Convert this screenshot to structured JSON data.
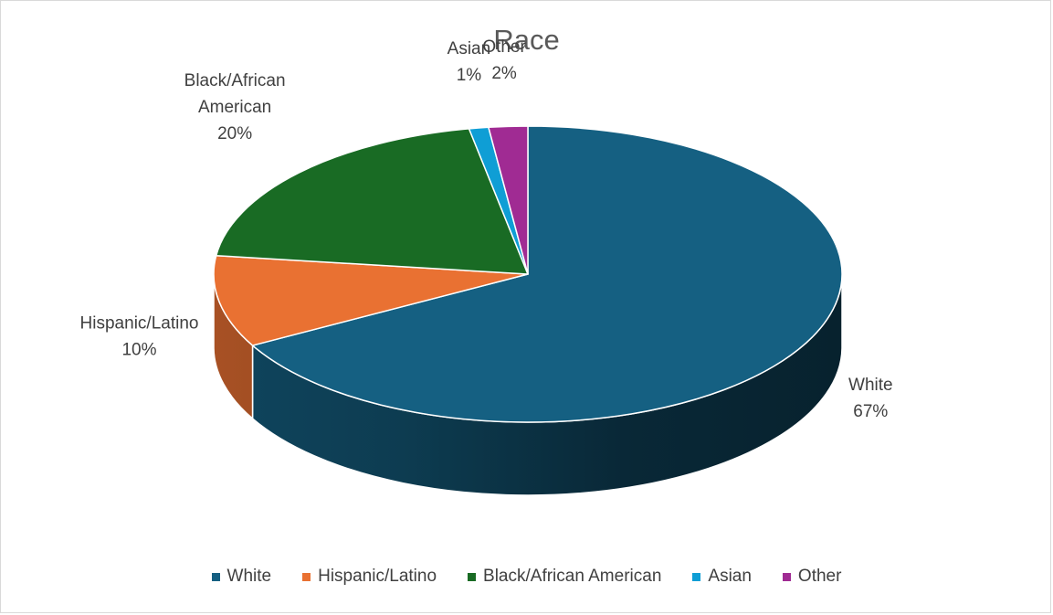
{
  "chart_data": {
    "type": "pie",
    "title": "Race",
    "categories": [
      "White",
      "Hispanic/Latino",
      "Black/African American",
      "Asian",
      "Other"
    ],
    "values": [
      67,
      10,
      20,
      1,
      2
    ],
    "data_labels": [
      "67%",
      "10%",
      "20%",
      "1%",
      "2%"
    ],
    "colors": [
      "#156082",
      "#E97132",
      "#196B24",
      "#0F9ED5",
      "#A02B93"
    ],
    "legend_position": "bottom",
    "style": "3d"
  }
}
